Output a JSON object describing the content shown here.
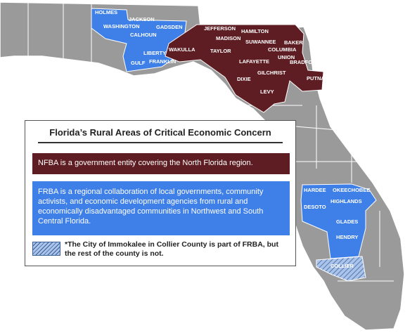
{
  "title": "Florida’s Rural Areas of Critical Economic Concern",
  "legend": {
    "nfba": "NFBA is a government entity covering the North Florida region.",
    "frba": "FRBA is a regional collaboration of local governments, community activists, and economic development agencies from rural and economically disadvantaged communities in Northwest and South Central Florida.",
    "note": "*The City of Immokalee in Collier County is part of FRBA, but the rest of the county is not."
  },
  "counties": {
    "frba_northwest": [
      "HOLMES",
      "JACKSON",
      "WASHINGTON",
      "CALHOUN",
      "GADSDEN",
      "LIBERTY",
      "GULF",
      "FRANKLIN"
    ],
    "nfba": [
      "JEFFERSON",
      "HAMILTON",
      "MADISON",
      "SUWANNEE",
      "BAKER",
      "COLUMBIA",
      "TAYLOR",
      "WAKULLA",
      "UNION",
      "LAFAYETTE",
      "BRADFORD",
      "GILCHRIST",
      "DIXIE",
      "PUTNAM",
      "LEVY"
    ],
    "frba_south": [
      "HARDEE",
      "OKEECHOBEE",
      "HIGHLANDS",
      "DESOTO",
      "GLADES",
      "HENDRY"
    ],
    "collier": "COLLIER"
  }
}
